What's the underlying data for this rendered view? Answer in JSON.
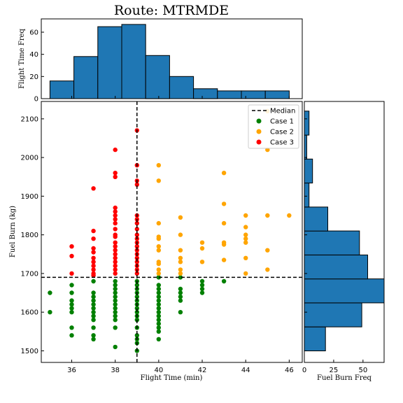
{
  "title": "Route: MTRMDE",
  "chart_data": [
    {
      "type": "scatter",
      "xlabel": "Flight Time (min)",
      "ylabel": "Fuel Burn (kg)",
      "xlim": [
        34.6,
        46.6
      ],
      "ylim": [
        1470,
        2145
      ],
      "xticks": [
        36,
        38,
        40,
        42,
        44,
        46
      ],
      "yticks": [
        1500,
        1600,
        1700,
        1800,
        1900,
        2000,
        2100
      ],
      "grid": false,
      "legend_position": "top-right",
      "median": {
        "label": "Median",
        "x": 39,
        "y": 1690
      },
      "series": [
        {
          "name": "Case 1",
          "color": "#008000",
          "points": [
            [
              35,
              1650
            ],
            [
              35,
              1600
            ],
            [
              36,
              1670
            ],
            [
              36,
              1650
            ],
            [
              36,
              1630
            ],
            [
              36,
              1620
            ],
            [
              36,
              1610
            ],
            [
              36,
              1600
            ],
            [
              36,
              1560
            ],
            [
              36,
              1540
            ],
            [
              37,
              1680
            ],
            [
              37,
              1650
            ],
            [
              37,
              1640
            ],
            [
              37,
              1630
            ],
            [
              37,
              1620
            ],
            [
              37,
              1610
            ],
            [
              37,
              1600
            ],
            [
              37,
              1590
            ],
            [
              37,
              1580
            ],
            [
              37,
              1560
            ],
            [
              37,
              1540
            ],
            [
              37,
              1530
            ],
            [
              38,
              1680
            ],
            [
              38,
              1670
            ],
            [
              38,
              1660
            ],
            [
              38,
              1650
            ],
            [
              38,
              1640
            ],
            [
              38,
              1630
            ],
            [
              38,
              1620
            ],
            [
              38,
              1610
            ],
            [
              38,
              1600
            ],
            [
              38,
              1590
            ],
            [
              38,
              1580
            ],
            [
              38,
              1560
            ],
            [
              38,
              1510
            ],
            [
              39,
              1680
            ],
            [
              39,
              1670
            ],
            [
              39,
              1660
            ],
            [
              39,
              1650
            ],
            [
              39,
              1640
            ],
            [
              39,
              1630
            ],
            [
              39,
              1620
            ],
            [
              39,
              1610
            ],
            [
              39,
              1600
            ],
            [
              39,
              1590
            ],
            [
              39,
              1580
            ],
            [
              39,
              1560
            ],
            [
              39,
              1540
            ],
            [
              39,
              1530
            ],
            [
              39,
              1520
            ],
            [
              39,
              1500
            ],
            [
              40,
              1690
            ],
            [
              40,
              1670
            ],
            [
              40,
              1660
            ],
            [
              40,
              1650
            ],
            [
              40,
              1640
            ],
            [
              40,
              1630
            ],
            [
              40,
              1620
            ],
            [
              40,
              1610
            ],
            [
              40,
              1600
            ],
            [
              40,
              1590
            ],
            [
              40,
              1580
            ],
            [
              40,
              1570
            ],
            [
              40,
              1560
            ],
            [
              40,
              1550
            ],
            [
              40,
              1530
            ],
            [
              41,
              1690
            ],
            [
              41,
              1660
            ],
            [
              41,
              1650
            ],
            [
              41,
              1640
            ],
            [
              41,
              1630
            ],
            [
              41,
              1600
            ],
            [
              42,
              1680
            ],
            [
              42,
              1670
            ],
            [
              42,
              1660
            ],
            [
              42,
              1650
            ],
            [
              43,
              1680
            ]
          ]
        },
        {
          "name": "Case 2",
          "color": "#ffa500",
          "points": [
            [
              40,
              1980
            ],
            [
              40,
              1940
            ],
            [
              40,
              1830
            ],
            [
              40,
              1795
            ],
            [
              40,
              1790
            ],
            [
              40,
              1770
            ],
            [
              40,
              1760
            ],
            [
              40,
              1730
            ],
            [
              40,
              1725
            ],
            [
              40,
              1710
            ],
            [
              40,
              1700
            ],
            [
              41,
              1845
            ],
            [
              41,
              1800
            ],
            [
              41,
              1760
            ],
            [
              41,
              1740
            ],
            [
              41,
              1730
            ],
            [
              41,
              1710
            ],
            [
              41,
              1700
            ],
            [
              42,
              1780
            ],
            [
              42,
              1765
            ],
            [
              42,
              1730
            ],
            [
              43,
              1960
            ],
            [
              43,
              1880
            ],
            [
              43,
              1830
            ],
            [
              43,
              1780
            ],
            [
              43,
              1775
            ],
            [
              43,
              1735
            ],
            [
              44,
              1850
            ],
            [
              44,
              1820
            ],
            [
              44,
              1800
            ],
            [
              44,
              1790
            ],
            [
              44,
              1780
            ],
            [
              44,
              1740
            ],
            [
              44,
              1700
            ],
            [
              45,
              2120
            ],
            [
              45,
              2020
            ],
            [
              45,
              1850
            ],
            [
              45,
              1760
            ],
            [
              45,
              1710
            ],
            [
              46,
              1850
            ]
          ]
        },
        {
          "name": "Case 3",
          "color": "#ff0000",
          "points": [
            [
              36,
              1770
            ],
            [
              36,
              1745
            ],
            [
              36,
              1700
            ],
            [
              37,
              1920
            ],
            [
              37,
              1810
            ],
            [
              37,
              1790
            ],
            [
              37,
              1765
            ],
            [
              37,
              1755
            ],
            [
              37,
              1740
            ],
            [
              37,
              1730
            ],
            [
              37,
              1720
            ],
            [
              37,
              1710
            ],
            [
              37,
              1700
            ],
            [
              37,
              1695
            ],
            [
              38,
              2020
            ],
            [
              38,
              1960
            ],
            [
              38,
              1950
            ],
            [
              38,
              1870
            ],
            [
              38,
              1860
            ],
            [
              38,
              1850
            ],
            [
              38,
              1840
            ],
            [
              38,
              1830
            ],
            [
              38,
              1815
            ],
            [
              38,
              1800
            ],
            [
              38,
              1795
            ],
            [
              38,
              1780
            ],
            [
              38,
              1770
            ],
            [
              38,
              1760
            ],
            [
              38,
              1750
            ],
            [
              38,
              1740
            ],
            [
              38,
              1730
            ],
            [
              38,
              1720
            ],
            [
              38,
              1710
            ],
            [
              38,
              1700
            ],
            [
              39,
              2070
            ],
            [
              39,
              1980
            ],
            [
              39,
              1940
            ],
            [
              39,
              1930
            ],
            [
              39,
              1850
            ],
            [
              39,
              1840
            ],
            [
              39,
              1830
            ],
            [
              39,
              1815
            ],
            [
              39,
              1800
            ],
            [
              39,
              1790
            ],
            [
              39,
              1780
            ],
            [
              39,
              1770
            ],
            [
              39,
              1760
            ],
            [
              39,
              1750
            ],
            [
              39,
              1740
            ],
            [
              39,
              1730
            ],
            [
              39,
              1720
            ],
            [
              39,
              1710
            ],
            [
              39,
              1700
            ]
          ]
        }
      ]
    },
    {
      "type": "bar",
      "ylabel": "Flight Time Freq",
      "color": "#1f77b4",
      "bins": [
        [
          35,
          36.1,
          16
        ],
        [
          36.1,
          37.2,
          38
        ],
        [
          37.2,
          38.3,
          65
        ],
        [
          38.3,
          39.4,
          67
        ],
        [
          39.4,
          40.5,
          39
        ],
        [
          40.5,
          41.6,
          20
        ],
        [
          41.6,
          42.7,
          9
        ],
        [
          42.7,
          43.8,
          7
        ],
        [
          43.8,
          44.9,
          7
        ],
        [
          44.9,
          46,
          7
        ]
      ],
      "ylim": [
        0,
        72
      ],
      "yticks": [
        0,
        20,
        40,
        60
      ]
    },
    {
      "type": "bar",
      "xlabel": "Fuel Burn Freq",
      "color": "#1f77b4",
      "orientation": "horizontal",
      "bins": [
        [
          1500,
          1562,
          18
        ],
        [
          1562,
          1624,
          49
        ],
        [
          1624,
          1686,
          68
        ],
        [
          1686,
          1748,
          54
        ],
        [
          1748,
          1810,
          47
        ],
        [
          1810,
          1872,
          20
        ],
        [
          1872,
          1934,
          4
        ],
        [
          1934,
          1996,
          7
        ],
        [
          1996,
          2058,
          2
        ],
        [
          2058,
          2120,
          4
        ]
      ],
      "xlim": [
        0,
        68
      ],
      "xticks": [
        0,
        25,
        50
      ]
    }
  ]
}
